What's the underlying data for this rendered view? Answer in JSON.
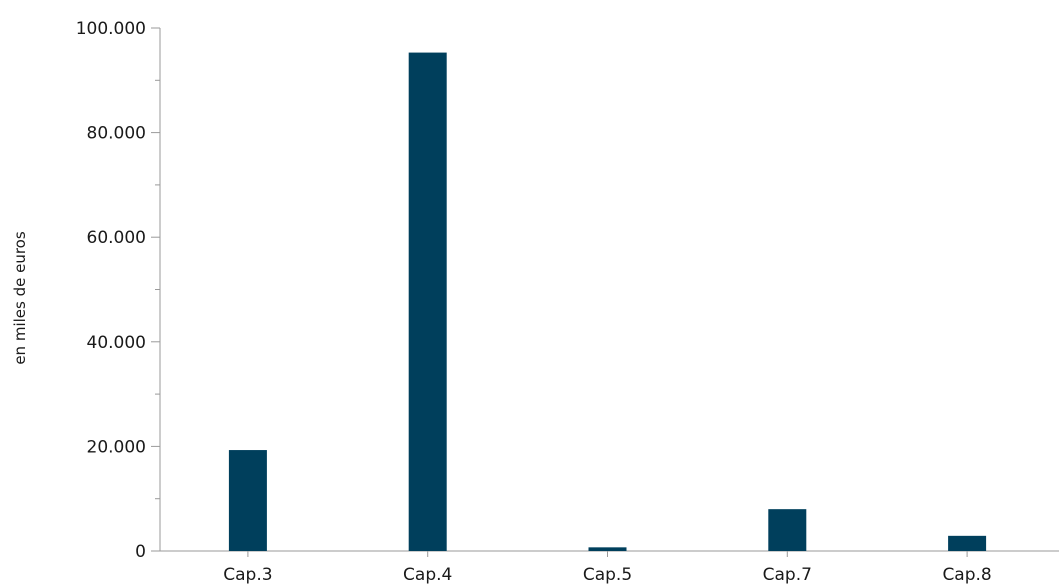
{
  "chart_data": {
    "type": "bar",
    "categories": [
      "Cap.3",
      "Cap.4",
      "Cap.5",
      "Cap.7",
      "Cap.8"
    ],
    "series": [
      {
        "values": [
          19300,
          95300,
          700,
          8000,
          2900
        ],
        "color": "#003f5c"
      }
    ],
    "title": "",
    "xlabel": "",
    "ylabel": "en miles de euros",
    "ylim": [
      0,
      100000
    ],
    "yticks": [
      0,
      20000,
      40000,
      60000,
      80000,
      100000
    ],
    "ytick_labels": [
      "0",
      "20.000",
      "40.000",
      "60.000",
      "80.000",
      "100.000"
    ],
    "grid": false,
    "legend": "none"
  }
}
